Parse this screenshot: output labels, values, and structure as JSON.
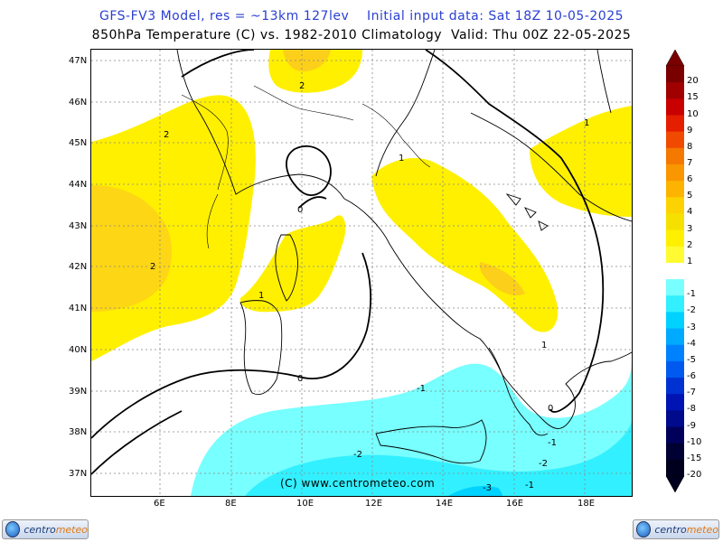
{
  "header": {
    "line1": "GFS-FV3 Model, res = ~13km 127lev    Initial input data: Sat 18Z 10-05-2025",
    "line2": "850hPa Temperature (C) vs. 1982-2010 Climatology  Valid: Thu 00Z 22-05-2025"
  },
  "axes": {
    "latitudes": [
      "47N",
      "46N",
      "45N",
      "44N",
      "43N",
      "42N",
      "41N",
      "40N",
      "39N",
      "38N",
      "37N"
    ],
    "longitudes": [
      "6E",
      "8E",
      "10E",
      "12E",
      "14E",
      "16E",
      "18E"
    ]
  },
  "colorbar": {
    "labels": [
      "20",
      "15",
      "10",
      "9",
      "8",
      "7",
      "6",
      "5",
      "4",
      "3",
      "2",
      "1",
      "-1",
      "-2",
      "-3",
      "-4",
      "-5",
      "-6",
      "-7",
      "-8",
      "-9",
      "-10",
      "-15",
      "-20"
    ],
    "colors": [
      "#7a0000",
      "#a00000",
      "#c80000",
      "#e61e00",
      "#f04a00",
      "#f57800",
      "#fa9600",
      "#fcb400",
      "#fcd200",
      "#f5e000",
      "#fff000",
      "#fffa32",
      "#ffffff",
      "#78ffff",
      "#32f0ff",
      "#00d2ff",
      "#00aaff",
      "#0082ff",
      "#005af0",
      "#0032d2",
      "#0014b4",
      "#000a8c",
      "#00005a",
      "#000032",
      "#00001e"
    ]
  },
  "contour_labels": [
    "2",
    "2",
    "2",
    "1",
    "1",
    "1",
    "0",
    "0",
    "0",
    "-1",
    "-1",
    "-2",
    "-2",
    "-3",
    "1",
    "-1"
  ],
  "copyright": "(C) www.centrometeo.com",
  "logos": {
    "left_text_a": "centro",
    "left_text_b": "meteo",
    "right_text_a": "centro",
    "right_text_b": "meteo"
  }
}
